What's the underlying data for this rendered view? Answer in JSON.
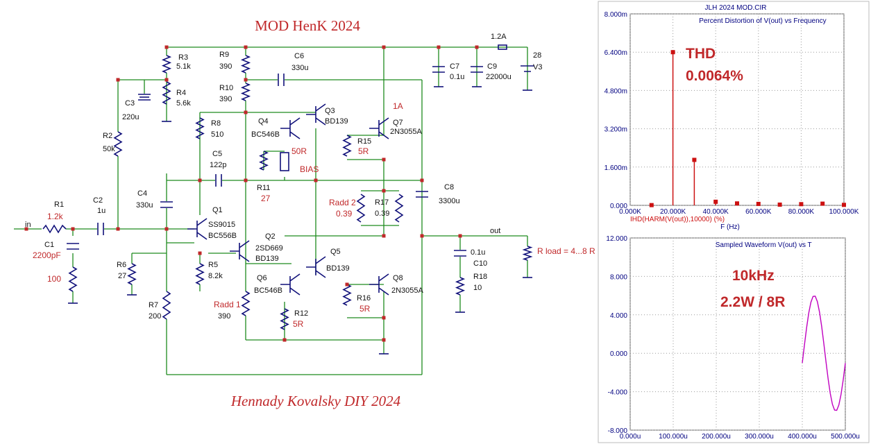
{
  "schematic": {
    "title": "MOD HenK 2024",
    "footer": "Hennady Kovalsky DIY 2024",
    "labels": [
      "R3",
      "5.1k",
      "R4",
      "5.6k",
      "R9",
      "390",
      "C6",
      "330u",
      "C7",
      "0.1u",
      "C9",
      "22000u",
      "1.2A",
      "28",
      "V3",
      "C3",
      "220u",
      "R10",
      "390",
      "R2",
      "50k",
      "R8",
      "510",
      "Q4",
      "BC546B",
      "Q3",
      "BD139",
      "Q7",
      "2N3055A",
      "R15",
      "C5",
      "122p",
      "R11",
      "C4",
      "330u",
      "C8",
      "3300u",
      "R17",
      "0.39",
      "C2",
      "1u",
      "R1",
      "in",
      "C1",
      "Q1",
      "SS9015",
      "BC556B",
      "Q2",
      "2SD669",
      "BD139",
      "Q5",
      "BD139",
      "out",
      "0.1u",
      "C10",
      "R18",
      "10",
      "R6",
      "27",
      "R5",
      "8.2k",
      "Q6",
      "BC546B",
      "Q8",
      "2N3055A",
      "R16",
      "R12",
      "R7",
      "200",
      "390"
    ],
    "notes": [
      "1.2k",
      "2200pF",
      "100",
      "50R",
      "BIAS",
      "27",
      "Radd 2",
      "0.39",
      "1A",
      "5R",
      "5R",
      "5R",
      "Radd 1",
      "R load = 4...8 R"
    ]
  },
  "chart_data": [
    {
      "type": "stem",
      "suptitle": "JLH 2024 MOD.CIR",
      "title": "Percent Distortion of V(out) vs Frequency",
      "trace_label": "IHD(HARM(V(out)),10000) (%)",
      "xlabel": "F (Hz)",
      "annotations": [
        "THD",
        "0.0064%"
      ],
      "x": [
        10000,
        20000,
        30000,
        40000,
        50000,
        60000,
        70000,
        80000,
        90000,
        100000
      ],
      "values": [
        1e-05,
        0.0064,
        0.0019,
        0.00015,
        8e-05,
        6e-05,
        3e-05,
        5e-05,
        7e-05,
        2e-05
      ],
      "color": "#cc1111",
      "xlim": [
        0,
        100000
      ],
      "xticks": [
        {
          "value": 0,
          "label": "0.000K"
        },
        {
          "value": 20000,
          "label": "20.000K"
        },
        {
          "value": 40000,
          "label": "40.000K"
        },
        {
          "value": 60000,
          "label": "60.000K"
        },
        {
          "value": 80000,
          "label": "80.000K"
        },
        {
          "value": 100000,
          "label": "100.000K"
        }
      ],
      "ylim": [
        0,
        0.008
      ],
      "yticks": [
        {
          "value": 0,
          "label": "0.000"
        },
        {
          "value": 0.0016,
          "label": "1.600m"
        },
        {
          "value": 0.0032,
          "label": "3.200m"
        },
        {
          "value": 0.0048,
          "label": "4.800m"
        },
        {
          "value": 0.0064,
          "label": "6.400m"
        },
        {
          "value": 0.008,
          "label": "8.000m"
        }
      ],
      "grid": true
    },
    {
      "type": "line",
      "title": "Sampled Waveform  V(out) vs T",
      "annotations": [
        "10kHz",
        "2.2W / 8R"
      ],
      "x": [
        0.0004,
        0.000405,
        0.00041,
        0.000415,
        0.00042,
        0.000425,
        0.00043,
        0.000435,
        0.00044,
        0.000445,
        0.00045,
        0.000455,
        0.00046,
        0.000465,
        0.00047,
        0.000475,
        0.00048,
        0.000485,
        0.00049,
        0.000495,
        0.0005
      ],
      "values": [
        -1.01,
        0.86,
        2.65,
        4.18,
        5.31,
        5.91,
        5.94,
        5.38,
        4.29,
        2.8,
        1.02,
        -0.86,
        -2.65,
        -4.18,
        -5.31,
        -5.91,
        -5.94,
        -5.38,
        -4.29,
        -2.8,
        -1.02
      ],
      "color": "#c000c0",
      "xlim": [
        0,
        0.0005
      ],
      "xticks": [
        {
          "value": 0,
          "label": "0.000u"
        },
        {
          "value": 0.0001,
          "label": "100.000u"
        },
        {
          "value": 0.0002,
          "label": "200.000u"
        },
        {
          "value": 0.0003,
          "label": "300.000u"
        },
        {
          "value": 0.0004,
          "label": "400.000u"
        },
        {
          "value": 0.0005,
          "label": "500.000u"
        }
      ],
      "ylim": [
        -8,
        12
      ],
      "yticks": [
        {
          "value": -8,
          "label": "-8.000"
        },
        {
          "value": -4,
          "label": "-4.000"
        },
        {
          "value": 0,
          "label": "0.000"
        },
        {
          "value": 4,
          "label": "4.000"
        },
        {
          "value": 8,
          "label": "8.000"
        },
        {
          "value": 12,
          "label": "12.000"
        }
      ],
      "grid": true
    }
  ]
}
